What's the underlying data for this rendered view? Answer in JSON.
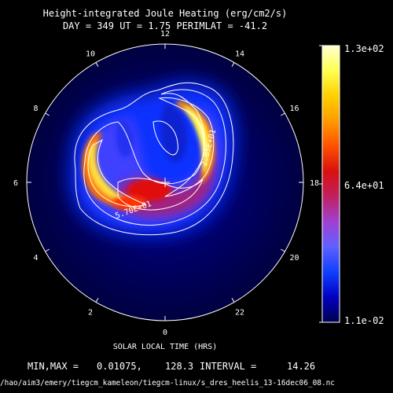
{
  "chart_data": {
    "type": "heatmap",
    "title": "Height-integrated Joule Heating (erg/cm2/s)",
    "subtitle": "DAY = 349   UT =  1.75  PERIMLAT = -41.2",
    "xlabel": "SOLAR LOCAL TIME (HRS)",
    "hour_labels": [
      "12",
      "14",
      "16",
      "18",
      "20",
      "22",
      "0",
      "2",
      "4",
      "6",
      "8",
      "10"
    ],
    "colorbar": {
      "min_label": "1.1e-02",
      "mid_label": "6.4e+01",
      "max_label": "1.3e+02",
      "min": 0.011,
      "max": 130,
      "colors": [
        "#000050",
        "#0000c0",
        "#1040ff",
        "#6060ff",
        "#a040d0",
        "#c02060",
        "#d81010",
        "#ff5000",
        "#ff9a00",
        "#ffd000",
        "#ffff50",
        "#ffffd0"
      ]
    },
    "contour_labels": [
      "2.85E+01",
      "5.70E+01"
    ],
    "stats": {
      "minmax_label": "MIN,MAX =",
      "min": "0.01075,",
      "max": "128.3",
      "interval_label": "INTERVAL =",
      "interval": "14.26"
    },
    "source_file": "/hao/aim3/emery/tiegcm_kameleon/tiegcm-linux/s_dres_heelis_13-16dec06_08.nc"
  }
}
